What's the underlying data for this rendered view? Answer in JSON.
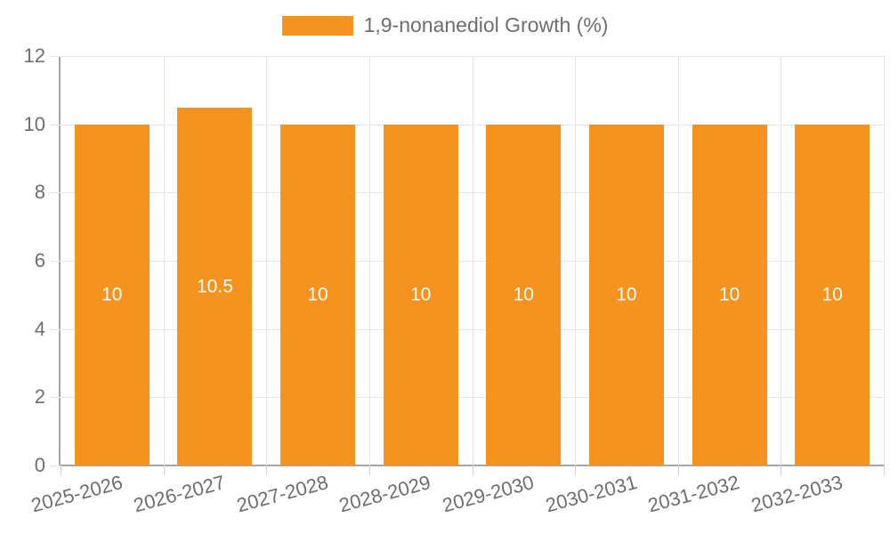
{
  "colors": {
    "bar": "#F6921E",
    "bar_label": "#FFFFFF",
    "grid": "#E6E6E6",
    "axis": "#A6A6A6",
    "tick": "#CFCFCF",
    "text": "#6E6E6E",
    "background": "#FFFFFF"
  },
  "chart_data": {
    "type": "bar",
    "title": "",
    "legend": "1,9-nonanediol Growth (%)",
    "legend_position": "top-center",
    "categories": [
      "2025-2026",
      "2026-2027",
      "2027-2028",
      "2028-2029",
      "2029-2030",
      "2030-2031",
      "2031-2032",
      "2032-2033"
    ],
    "values": [
      10,
      10.5,
      10,
      10,
      10,
      10,
      10,
      10
    ],
    "bar_labels": [
      "10",
      "10.5",
      "10",
      "10",
      "10",
      "10",
      "10",
      "10"
    ],
    "xlabel": "",
    "ylabel": "",
    "ylim": [
      0,
      12
    ],
    "yticks": [
      0,
      2,
      4,
      6,
      8,
      10,
      12
    ],
    "grid": true,
    "x_label_rotation_deg": -15
  }
}
